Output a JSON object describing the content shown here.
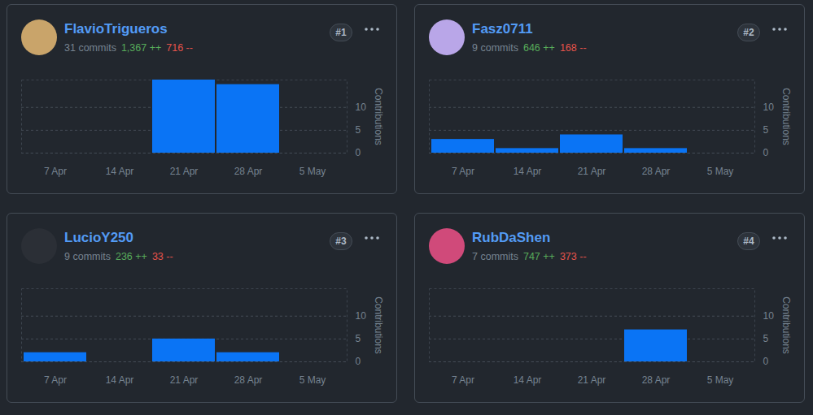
{
  "chart_data": [
    {
      "type": "bar",
      "title": "FlavioTrigueros",
      "subtitle": "31 commits",
      "annotations": [
        "1,367 ++",
        "716 --",
        "#1"
      ],
      "categories": [
        "7 Apr",
        "14 Apr",
        "21 Apr",
        "28 Apr",
        "5 May"
      ],
      "values": [
        0,
        0,
        16,
        15,
        0
      ],
      "color": "#0a74f5",
      "y_label": "Contributions",
      "ylim": [
        0,
        16
      ],
      "yticks": [
        0,
        5,
        10
      ],
      "grid": true
    },
    {
      "type": "bar",
      "title": "Fasz0711",
      "subtitle": "9 commits",
      "annotations": [
        "646 ++",
        "168 --",
        "#2"
      ],
      "categories": [
        "7 Apr",
        "14 Apr",
        "21 Apr",
        "28 Apr",
        "5 May"
      ],
      "values": [
        3,
        1,
        4,
        1,
        0
      ],
      "color": "#0a74f5",
      "y_label": "Contributions",
      "ylim": [
        0,
        16
      ],
      "yticks": [
        0,
        5,
        10
      ],
      "grid": true
    },
    {
      "type": "bar",
      "title": "LucioY250",
      "subtitle": "9 commits",
      "annotations": [
        "236 ++",
        "33 --",
        "#3"
      ],
      "categories": [
        "7 Apr",
        "14 Apr",
        "21 Apr",
        "28 Apr",
        "5 May"
      ],
      "values": [
        2,
        0,
        5,
        2,
        0
      ],
      "color": "#0a74f5",
      "y_label": "Contributions",
      "ylim": [
        0,
        16
      ],
      "yticks": [
        0,
        5,
        10
      ],
      "grid": true
    },
    {
      "type": "bar",
      "title": "RubDaShen",
      "subtitle": "7 commits",
      "annotations": [
        "747 ++",
        "373 --",
        "#4"
      ],
      "categories": [
        "7 Apr",
        "14 Apr",
        "21 Apr",
        "28 Apr",
        "5 May"
      ],
      "values": [
        0,
        0,
        0,
        7,
        0
      ],
      "color": "#0a74f5",
      "y_label": "Contributions",
      "ylim": [
        0,
        16
      ],
      "yticks": [
        0,
        5,
        10
      ],
      "grid": true
    }
  ]
}
